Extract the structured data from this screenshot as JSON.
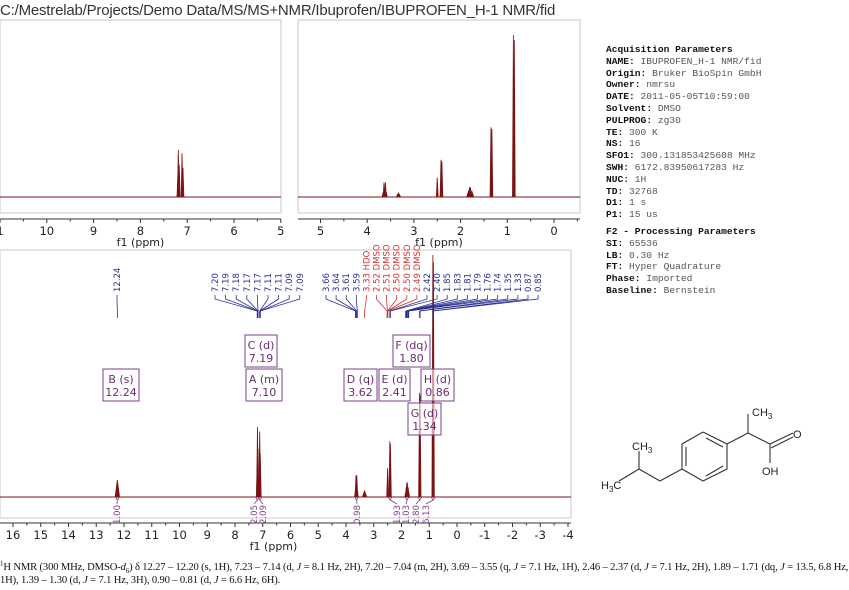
{
  "title": "C:/Mestrelab/Projects/Demo Data/MS/MS+NMR/Ibuprofen/IBUPROFEN_H-1 NMR/fid",
  "parameters": {
    "acquisition_header": "Acquisition Parameters",
    "acquisition": [
      {
        "key": "NAME",
        "value": "IBUPROFEN_H-1 NMR/fid"
      },
      {
        "key": "Origin",
        "value": "Bruker BioSpin GmbH"
      },
      {
        "key": "Owner",
        "value": "nmrsu"
      },
      {
        "key": "DATE",
        "value": "2011-05-05T10:59:00"
      },
      {
        "key": "Solvent",
        "value": "DMSO"
      },
      {
        "key": "PULPROG",
        "value": "zg30"
      },
      {
        "key": "TE",
        "value": "300 K"
      },
      {
        "key": "NS",
        "value": "16"
      },
      {
        "key": "SFO1",
        "value": "300.131853425608 MHz"
      },
      {
        "key": "SWH",
        "value": "6172.83950617283 Hz"
      },
      {
        "key": "NUC",
        "value": "1H"
      },
      {
        "key": "TD",
        "value": "32768"
      },
      {
        "key": "D1",
        "value": "1 s"
      },
      {
        "key": "P1",
        "value": "15 us"
      }
    ],
    "processing_header": "F2 - Processing Parameters",
    "processing": [
      {
        "key": "SI",
        "value": "65536"
      },
      {
        "key": "LB",
        "value": "0.30 Hz"
      },
      {
        "key": "FT",
        "value": "Hyper Quadrature"
      },
      {
        "key": "Phase",
        "value": "Imported"
      },
      {
        "key": "Baseline",
        "value": "Bernstein"
      }
    ]
  },
  "colors": {
    "spectrum": "#7a1414",
    "peak_label": "#2a2f8f",
    "solvent_label": "#d03030",
    "multiplet": "#7b3f8b",
    "axis": "#333333",
    "frame": "#c8c8c8"
  },
  "chart_data": [
    {
      "type": "line",
      "panel": "top-left inset",
      "xlabel": "f1 (ppm)",
      "xlim": [
        11,
        5
      ],
      "x_reversed": true,
      "ticks": [
        "1",
        "10",
        "9",
        "8",
        "7",
        "6",
        "5"
      ],
      "tick_values": [
        11,
        10,
        9,
        8,
        7,
        6,
        5
      ]
    },
    {
      "type": "line",
      "panel": "top-right inset",
      "xlabel": "f1 (ppm)",
      "xlim": [
        5.47,
        -0.55
      ],
      "x_reversed": true,
      "ticks": [
        "5",
        "4",
        "3",
        "2",
        "1",
        "0"
      ],
      "tick_values": [
        5,
        4,
        3,
        2,
        1,
        0
      ]
    },
    {
      "type": "line",
      "panel": "main",
      "xlabel": "f1 (ppm)",
      "xlim": [
        16.1,
        -4.1
      ],
      "x_reversed": true,
      "ticks": [
        "16",
        "15",
        "14",
        "13",
        "12",
        "11",
        "10",
        "9",
        "8",
        "7",
        "6",
        "5",
        "4",
        "3",
        "2",
        "1",
        "0",
        "-1",
        "-2",
        "-3",
        "-4"
      ],
      "tick_values": [
        16,
        15,
        14,
        13,
        12,
        11,
        10,
        9,
        8,
        7,
        6,
        5,
        4,
        3,
        2,
        1,
        0,
        -1,
        -2,
        -3,
        -4
      ],
      "peaks": [
        {
          "ppm": 12.24,
          "intensity": 0.07,
          "broad": true
        },
        {
          "ppm": 7.2,
          "intensity": 0.12
        },
        {
          "ppm": 7.19,
          "intensity": 0.29
        },
        {
          "ppm": 7.17,
          "intensity": 0.2
        },
        {
          "ppm": 7.11,
          "intensity": 0.27
        },
        {
          "ppm": 7.09,
          "intensity": 0.18
        },
        {
          "ppm": 3.66,
          "intensity": 0.03
        },
        {
          "ppm": 3.64,
          "intensity": 0.09
        },
        {
          "ppm": 3.61,
          "intensity": 0.09
        },
        {
          "ppm": 3.59,
          "intensity": 0.03
        },
        {
          "ppm": 3.33,
          "intensity": 0.025,
          "broad": true
        },
        {
          "ppm": 2.5,
          "intensity": 0.12
        },
        {
          "ppm": 2.42,
          "intensity": 0.23
        },
        {
          "ppm": 2.4,
          "intensity": 0.22
        },
        {
          "ppm": 1.85,
          "intensity": 0.02
        },
        {
          "ppm": 1.83,
          "intensity": 0.04
        },
        {
          "ppm": 1.81,
          "intensity": 0.06
        },
        {
          "ppm": 1.79,
          "intensity": 0.06
        },
        {
          "ppm": 1.76,
          "intensity": 0.04
        },
        {
          "ppm": 1.74,
          "intensity": 0.02
        },
        {
          "ppm": 1.35,
          "intensity": 0.43
        },
        {
          "ppm": 1.33,
          "intensity": 0.42
        },
        {
          "ppm": 0.87,
          "intensity": 1.0
        },
        {
          "ppm": 0.85,
          "intensity": 0.97
        }
      ],
      "peak_labels": [
        {
          "text": "12.24",
          "ppm": 12.24,
          "group": 0,
          "solvent": false
        },
        {
          "text": "7.20",
          "ppm": 7.2,
          "group": 1,
          "solvent": false
        },
        {
          "text": "7.19",
          "ppm": 7.19,
          "group": 1,
          "solvent": false
        },
        {
          "text": "7.18",
          "ppm": 7.18,
          "group": 1,
          "solvent": false
        },
        {
          "text": "7.17",
          "ppm": 7.17,
          "group": 1,
          "solvent": false
        },
        {
          "text": "7.17",
          "ppm": 7.17,
          "group": 1,
          "solvent": false
        },
        {
          "text": "7.11",
          "ppm": 7.11,
          "group": 1,
          "solvent": false
        },
        {
          "text": "7.11",
          "ppm": 7.11,
          "group": 1,
          "solvent": false
        },
        {
          "text": "7.09",
          "ppm": 7.09,
          "group": 1,
          "solvent": false
        },
        {
          "text": "7.09",
          "ppm": 7.09,
          "group": 1,
          "solvent": false
        },
        {
          "text": "3.66",
          "ppm": 3.66,
          "group": 2,
          "solvent": false
        },
        {
          "text": "3.64",
          "ppm": 3.64,
          "group": 2,
          "solvent": false
        },
        {
          "text": "3.61",
          "ppm": 3.61,
          "group": 2,
          "solvent": false
        },
        {
          "text": "3.59",
          "ppm": 3.59,
          "group": 2,
          "solvent": false
        },
        {
          "text": "3.33 HDO",
          "ppm": 3.33,
          "group": 2,
          "solvent": true
        },
        {
          "text": "2.52 DMSO",
          "ppm": 2.52,
          "group": 2,
          "solvent": true
        },
        {
          "text": "2.51 DMSO",
          "ppm": 2.51,
          "group": 2,
          "solvent": true
        },
        {
          "text": "2.50 DMSO",
          "ppm": 2.5,
          "group": 2,
          "solvent": true
        },
        {
          "text": "2.50 DMSO",
          "ppm": 2.5,
          "group": 2,
          "solvent": true
        },
        {
          "text": "2.49 DMSO",
          "ppm": 2.49,
          "group": 2,
          "solvent": true
        },
        {
          "text": "2.42",
          "ppm": 2.42,
          "group": 2,
          "solvent": false
        },
        {
          "text": "2.40",
          "ppm": 2.4,
          "group": 2,
          "solvent": false
        },
        {
          "text": "1.85",
          "ppm": 1.85,
          "group": 2,
          "solvent": false
        },
        {
          "text": "1.83",
          "ppm": 1.83,
          "group": 2,
          "solvent": false
        },
        {
          "text": "1.81",
          "ppm": 1.81,
          "group": 2,
          "solvent": false
        },
        {
          "text": "1.79",
          "ppm": 1.79,
          "group": 2,
          "solvent": false
        },
        {
          "text": "1.76",
          "ppm": 1.76,
          "group": 2,
          "solvent": false
        },
        {
          "text": "1.74",
          "ppm": 1.74,
          "group": 2,
          "solvent": false
        },
        {
          "text": "1.35",
          "ppm": 1.35,
          "group": 2,
          "solvent": false
        },
        {
          "text": "1.33",
          "ppm": 1.33,
          "group": 2,
          "solvent": false
        },
        {
          "text": "0.87",
          "ppm": 0.87,
          "group": 2,
          "solvent": false
        },
        {
          "text": "0.85",
          "ppm": 0.85,
          "group": 2,
          "solvent": false
        }
      ],
      "multiplets": [
        {
          "label": "B (s)",
          "shift": "12.24",
          "ppm": 12.24
        },
        {
          "label": "C (d)",
          "shift": "7.19",
          "ppm": 7.19
        },
        {
          "label": "A (m)",
          "shift": "7.10",
          "ppm": 7.1
        },
        {
          "label": "D (q)",
          "shift": "3.62",
          "ppm": 3.62
        },
        {
          "label": "E (d)",
          "shift": "2.41",
          "ppm": 2.41
        },
        {
          "label": "F (dq)",
          "shift": "1.80",
          "ppm": 1.8
        },
        {
          "label": "H (d)",
          "shift": "0.86",
          "ppm": 0.86
        },
        {
          "label": "G (d)",
          "shift": "1.34",
          "ppm": 1.34
        }
      ],
      "integrals": [
        {
          "value": "1.00",
          "ppm": 12.24
        },
        {
          "value": "2.05",
          "ppm": 7.19
        },
        {
          "value": "2.09",
          "ppm": 7.1
        },
        {
          "value": "0.98",
          "ppm": 3.62
        },
        {
          "value": "1.93",
          "ppm": 2.41
        },
        {
          "value": "1.03",
          "ppm": 1.8
        },
        {
          "value": "2.80",
          "ppm": 1.34
        },
        {
          "value": "6.13",
          "ppm": 0.86
        }
      ]
    }
  ],
  "structure": {
    "labels": {
      "ch3_top": "CH",
      "ch3_top_sub": "3",
      "oxygen": "O",
      "hydroxyl": "OH",
      "ch3_left": "CH",
      "ch3_left_sub": "3",
      "h3c": "H",
      "h3c_sub": "3",
      "h3c_end": "C"
    }
  },
  "caption": [
    {
      "t": "1",
      "s": "sup"
    },
    {
      "t": "H NMR (300 MHz, DMSO-"
    },
    {
      "t": "d",
      "s": "i"
    },
    {
      "t": "6",
      "s": "sub"
    },
    {
      "t": ") δ 12.27 – 12.20 (s, 1H), 7.23 – 7.14 (d, "
    },
    {
      "t": "J",
      "s": "i"
    },
    {
      "t": " = 8.1 Hz, 2H), 7.20 – 7.04 (m, 2H), 3.69 – 3.55 (q, "
    },
    {
      "t": "J",
      "s": "i"
    },
    {
      "t": " = 7.1 Hz, 1H), 2.46 – 2.37 (d, "
    },
    {
      "t": "J",
      "s": "i"
    },
    {
      "t": " = 7.1 Hz, 2H), 1.89 – 1.71 (dq, "
    },
    {
      "t": "J",
      "s": "i"
    },
    {
      "t": " = 13.5, 6.8 Hz, 1H), 1.39 – 1.30 (d, "
    },
    {
      "t": "J",
      "s": "i"
    },
    {
      "t": " = 7.1 Hz, 3H), 0.90 – 0.81 (d, "
    },
    {
      "t": "J",
      "s": "i"
    },
    {
      "t": " = 6.6 Hz, 6H)."
    }
  ]
}
